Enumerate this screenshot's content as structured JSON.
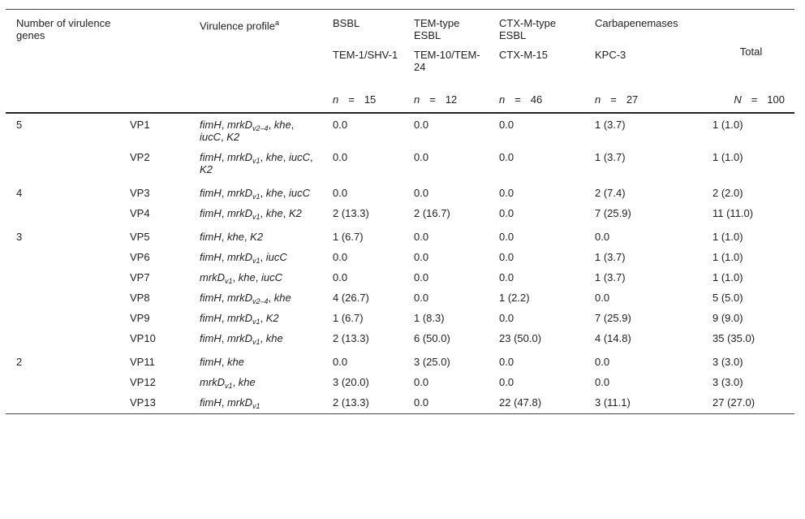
{
  "header": {
    "col_genes": "Number of virulence genes",
    "col_profile": "Virulence profile",
    "col_profile_sup": "a",
    "groups": [
      {
        "label": "BSBL",
        "type": "TEM-1/SHV-1",
        "n_symbol": "n",
        "n": "15"
      },
      {
        "label": "TEM-type ESBL",
        "type": "TEM-10/TEM-24",
        "n_symbol": "n",
        "n": "12"
      },
      {
        "label": "CTX-M-type ESBL",
        "type": "CTX-M-15",
        "n_symbol": "n",
        "n": "46"
      },
      {
        "label": "Carbapenemases",
        "type": "KPC-3",
        "n_symbol": "n",
        "n": "27"
      }
    ],
    "total_label": "Total",
    "total_symbol": "N",
    "total_n": "100"
  },
  "rows": [
    {
      "count": "5",
      "vp": "VP1",
      "genes": [
        {
          "g": "fimH"
        },
        {
          "g": "mrkD",
          "s": "v2–4"
        },
        {
          "g": "khe"
        },
        {
          "g": "iucC"
        },
        {
          "g": "K2"
        }
      ],
      "vals": [
        "0.0",
        "0.0",
        "0.0",
        "1 (3.7)",
        "1 (1.0)"
      ]
    },
    {
      "count": "",
      "vp": "VP2",
      "genes": [
        {
          "g": "fimH"
        },
        {
          "g": "mrkD",
          "s": "v1"
        },
        {
          "g": "khe"
        },
        {
          "g": "iucC"
        },
        {
          "g": "K2"
        }
      ],
      "vals": [
        "0.0",
        "0.0",
        "0.0",
        "1 (3.7)",
        "1 (1.0)"
      ]
    },
    {
      "count": "4",
      "vp": "VP3",
      "genes": [
        {
          "g": "fimH"
        },
        {
          "g": "mrkD",
          "s": "v1"
        },
        {
          "g": "khe"
        },
        {
          "g": "iucC"
        }
      ],
      "vals": [
        "0.0",
        "0.0",
        "0.0",
        "2 (7.4)",
        "2 (2.0)"
      ]
    },
    {
      "count": "",
      "vp": "VP4",
      "genes": [
        {
          "g": "fimH"
        },
        {
          "g": "mrkD",
          "s": "v1"
        },
        {
          "g": "khe"
        },
        {
          "g": "K2"
        }
      ],
      "vals": [
        "2 (13.3)",
        "2 (16.7)",
        "0.0",
        "7 (25.9)",
        "11 (11.0)"
      ]
    },
    {
      "count": "3",
      "vp": "VP5",
      "genes": [
        {
          "g": "fimH"
        },
        {
          "g": "khe"
        },
        {
          "g": "K2"
        }
      ],
      "vals": [
        "1 (6.7)",
        "0.0",
        "0.0",
        "0.0",
        "1 (1.0)"
      ]
    },
    {
      "count": "",
      "vp": "VP6",
      "genes": [
        {
          "g": "fimH"
        },
        {
          "g": "mrkD",
          "s": "v1"
        },
        {
          "g": "iucC"
        }
      ],
      "vals": [
        "0.0",
        "0.0",
        "0.0",
        "1 (3.7)",
        "1 (1.0)"
      ]
    },
    {
      "count": "",
      "vp": "VP7",
      "genes": [
        {
          "g": "mrkD",
          "s": "v1"
        },
        {
          "g": "khe"
        },
        {
          "g": "iucC"
        }
      ],
      "vals": [
        "0.0",
        "0.0",
        "0.0",
        "1 (3.7)",
        "1 (1.0)"
      ]
    },
    {
      "count": "",
      "vp": "VP8",
      "genes": [
        {
          "g": "fimH"
        },
        {
          "g": "mrkD",
          "s": "v2–4"
        },
        {
          "g": "khe"
        }
      ],
      "vals": [
        "4 (26.7)",
        "0.0",
        "1 (2.2)",
        "0.0",
        "5 (5.0)"
      ]
    },
    {
      "count": "",
      "vp": "VP9",
      "genes": [
        {
          "g": "fimH"
        },
        {
          "g": "mrkD",
          "s": "v1"
        },
        {
          "g": "K2"
        }
      ],
      "vals": [
        "1 (6.7)",
        "1 (8.3)",
        "0.0",
        "7 (25.9)",
        "9 (9.0)"
      ]
    },
    {
      "count": "",
      "vp": "VP10",
      "genes": [
        {
          "g": "fimH"
        },
        {
          "g": "mrkD",
          "s": "v1"
        },
        {
          "g": "khe"
        }
      ],
      "vals": [
        "2 (13.3)",
        "6 (50.0)",
        "23 (50.0)",
        "4 (14.8)",
        "35 (35.0)"
      ]
    },
    {
      "count": "2",
      "vp": "VP11",
      "genes": [
        {
          "g": "fimH"
        },
        {
          "g": "khe"
        }
      ],
      "vals": [
        "0.0",
        "3 (25.0)",
        "0.0",
        "0.0",
        "3 (3.0)"
      ]
    },
    {
      "count": "",
      "vp": "VP12",
      "genes": [
        {
          "g": "mrkD",
          "s": "v1"
        },
        {
          "g": "khe"
        }
      ],
      "vals": [
        "3 (20.0)",
        "0.0",
        "0.0",
        "0.0",
        "3 (3.0)"
      ]
    },
    {
      "count": "",
      "vp": "VP13",
      "genes": [
        {
          "g": "fimH"
        },
        {
          "g": "mrkD",
          "s": "v1"
        }
      ],
      "vals": [
        "2 (13.3)",
        "0.0",
        "22 (47.8)",
        "3 (11.1)",
        "27 (27.0)"
      ]
    }
  ]
}
